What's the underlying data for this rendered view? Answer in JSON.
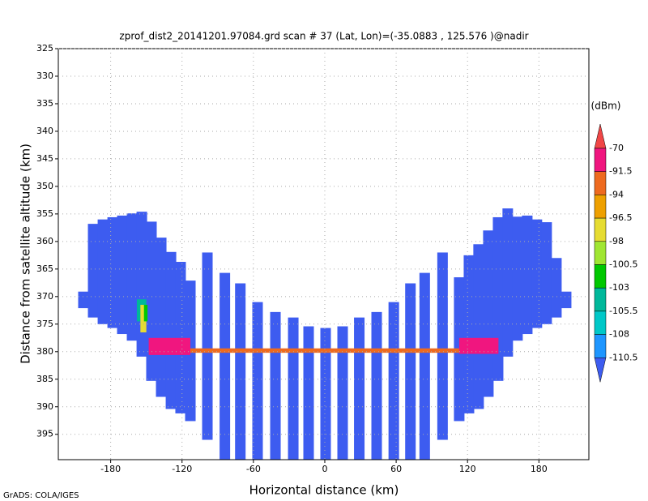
{
  "chart_data": {
    "type": "profile",
    "title": "zprof_dist2_20141201.97084.grd  scan # 37  (Lat, Lon)=(-35.0883 , 125.576 )@nadir",
    "x_label": "Horizontal distance (km)",
    "y_label": "Distance from satellite altitude (km)",
    "footer": "GrADS: COLA/IGES",
    "xlim": [
      -224,
      222
    ],
    "ylim": [
      325,
      399.6
    ],
    "y_inverted": true,
    "xticks": [
      -180,
      -120,
      -60,
      0,
      60,
      120,
      180
    ],
    "yticks": [
      325,
      330,
      335,
      340,
      345,
      350,
      355,
      360,
      365,
      370,
      375,
      380,
      385,
      390,
      395
    ],
    "grid": true,
    "swath_color": "#3d5cf0",
    "beams": [
      {
        "x": -202.9,
        "top": 369.1,
        "bottom": 372.1
      },
      {
        "x": -194.7,
        "top": 356.8,
        "bottom": 373.8
      },
      {
        "x": -186.5,
        "top": 356.0,
        "bottom": 375.0
      },
      {
        "x": -178.3,
        "top": 355.6,
        "bottom": 375.7
      },
      {
        "x": -170.2,
        "top": 355.3,
        "bottom": 376.8
      },
      {
        "x": -162.0,
        "top": 354.9,
        "bottom": 378.0
      },
      {
        "x": -153.8,
        "top": 354.6,
        "bottom": 380.9
      },
      {
        "x": -145.7,
        "top": 356.4,
        "bottom": 385.3
      },
      {
        "x": -137.5,
        "top": 359.3,
        "bottom": 388.2
      },
      {
        "x": -129.3,
        "top": 361.9,
        "bottom": 390.4
      },
      {
        "x": -121.2,
        "top": 363.7,
        "bottom": 391.2
      },
      {
        "x": -113.0,
        "top": 367.1,
        "bottom": 392.6
      },
      {
        "x": -98.7,
        "top": 362.0,
        "bottom": 396.0
      },
      {
        "x": -84.0,
        "top": 365.7,
        "bottom": 399.6
      },
      {
        "x": -71.0,
        "top": 367.6,
        "bottom": 399.6
      },
      {
        "x": -56.5,
        "top": 371.0,
        "bottom": 399.6
      },
      {
        "x": -41.5,
        "top": 372.8,
        "bottom": 399.6
      },
      {
        "x": -26.5,
        "top": 373.8,
        "bottom": 399.6
      },
      {
        "x": -13.6,
        "top": 375.4,
        "bottom": 399.6
      },
      {
        "x": 0.7,
        "top": 375.7,
        "bottom": 399.6
      },
      {
        "x": 15.0,
        "top": 375.4,
        "bottom": 399.6
      },
      {
        "x": 29.0,
        "top": 373.8,
        "bottom": 399.6
      },
      {
        "x": 43.6,
        "top": 372.8,
        "bottom": 399.6
      },
      {
        "x": 58.0,
        "top": 371.0,
        "bottom": 399.6
      },
      {
        "x": 72.0,
        "top": 367.6,
        "bottom": 399.6
      },
      {
        "x": 84.0,
        "top": 365.7,
        "bottom": 399.6
      },
      {
        "x": 99.0,
        "top": 362.0,
        "bottom": 396.0
      },
      {
        "x": 113.0,
        "top": 366.5,
        "bottom": 392.6
      },
      {
        "x": 121.2,
        "top": 362.5,
        "bottom": 391.2
      },
      {
        "x": 129.3,
        "top": 360.5,
        "bottom": 390.4
      },
      {
        "x": 137.5,
        "top": 358.0,
        "bottom": 388.2
      },
      {
        "x": 145.7,
        "top": 355.6,
        "bottom": 385.3
      },
      {
        "x": 153.8,
        "top": 354.0,
        "bottom": 380.9
      },
      {
        "x": 162.0,
        "top": 355.5,
        "bottom": 378.0
      },
      {
        "x": 170.2,
        "top": 355.3,
        "bottom": 376.8
      },
      {
        "x": 178.3,
        "top": 356.0,
        "bottom": 375.7
      },
      {
        "x": 186.5,
        "top": 356.5,
        "bottom": 375.0
      },
      {
        "x": 194.7,
        "top": 363.0,
        "bottom": 373.8
      },
      {
        "x": 202.9,
        "top": 369.1,
        "bottom": 372.1
      }
    ],
    "features": [
      {
        "x": [
          -148,
          -113
        ],
        "y": [
          377.5,
          380.6
        ],
        "color": "#f0167f"
      },
      {
        "x": [
          -113,
          113
        ],
        "y": [
          379.4,
          380.2
        ],
        "color": "#ee6a1f"
      },
      {
        "x": [
          113,
          146
        ],
        "y": [
          377.5,
          380.4
        ],
        "color": "#f0167f"
      },
      {
        "x": [
          -158,
          -150
        ],
        "y": [
          370.5,
          374.5
        ],
        "color": "#00b89a"
      },
      {
        "x": [
          -155,
          -150
        ],
        "y": [
          371.5,
          376.5
        ],
        "color": "#e6dc32"
      },
      {
        "x": [
          -152,
          -149
        ],
        "y": [
          371.5,
          374.5
        ],
        "color": "#00c800"
      }
    ],
    "colorbar": {
      "unit": "(dBm)",
      "levels": [
        -70,
        -91.5,
        -94,
        -96.5,
        -98,
        -100.5,
        -103,
        -105.5,
        -108,
        -110.5
      ],
      "colors": [
        "#f04646",
        "#f0167f",
        "#ee6a1f",
        "#eea000",
        "#e6dc32",
        "#a0e632",
        "#00c800",
        "#00b89a",
        "#00c8c8",
        "#1e96ff",
        "#3d5cf0"
      ]
    }
  }
}
